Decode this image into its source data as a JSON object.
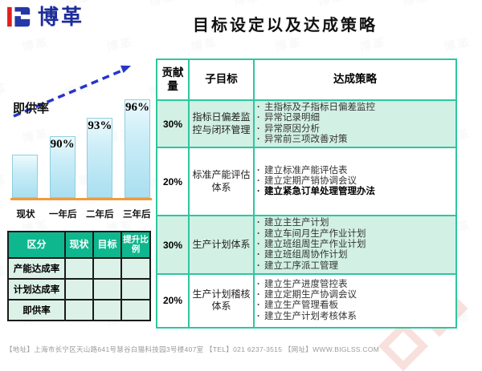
{
  "watermark": {
    "text": "博革"
  },
  "logo": {
    "company": "博革"
  },
  "header": {
    "title": "目标设定以及达成策略"
  },
  "chart_data": {
    "type": "bar",
    "title": "即供率",
    "categories": [
      "现状",
      "一年后",
      "二年后",
      "三年后"
    ],
    "values": [
      87,
      90,
      93,
      96
    ],
    "data_labels": [
      "",
      "90%",
      "93%",
      "96%"
    ],
    "ylim": [
      80,
      100
    ],
    "xlabel": "",
    "ylabel": "",
    "grid": false,
    "legend": false,
    "annotations": [
      "rising dashed blue trend arrow above bars",
      "orange baseline under bars"
    ]
  },
  "metrics_table": {
    "headers": [
      "区分",
      "现状",
      "目标",
      "提升比例"
    ],
    "rows": [
      {
        "label": "产能达成率",
        "values": [
          "",
          "",
          ""
        ]
      },
      {
        "label": "计划达成率",
        "values": [
          "",
          "",
          ""
        ]
      },
      {
        "label": "即供率",
        "values": [
          "",
          "",
          ""
        ]
      }
    ]
  },
  "strategy_table": {
    "headers": [
      "贡献量",
      "子目标",
      "达成策略"
    ],
    "rows": [
      {
        "contribution": "30%",
        "sub_goal": "指标日偏差监控与闭环管理",
        "strategies": [
          {
            "text": "主指标及子指标日偏差监控",
            "bold": false
          },
          {
            "text": "异常记录明细",
            "bold": false
          },
          {
            "text": "异常原因分析",
            "bold": false
          },
          {
            "text": "异常前三项改善对策",
            "bold": false
          }
        ]
      },
      {
        "contribution": "20%",
        "sub_goal": "标准产能评估体系",
        "strategies": [
          {
            "text": "建立标准产能评估表",
            "bold": false
          },
          {
            "text": "建立定期产销协调会议",
            "bold": false
          },
          {
            "text": "建立紧急订单处理管理办法",
            "bold": true
          }
        ]
      },
      {
        "contribution": "30%",
        "sub_goal": "生产计划体系",
        "strategies": [
          {
            "text": "建立主生产计划",
            "bold": false
          },
          {
            "text": "建立车间月生产作业计划",
            "bold": false
          },
          {
            "text": "建立班组周生产作业计划",
            "bold": false
          },
          {
            "text": "建立班组周协作计划",
            "bold": false
          },
          {
            "text": "建立工序派工管理",
            "bold": false
          }
        ]
      },
      {
        "contribution": "20%",
        "sub_goal": "生产计划稽核体系",
        "strategies": [
          {
            "text": "建立生产进度管控表",
            "bold": false
          },
          {
            "text": "建立定期生产协调会议",
            "bold": false
          },
          {
            "text": "建立生产管理看板",
            "bold": false
          },
          {
            "text": "建立生产计划考核体系",
            "bold": false
          }
        ]
      }
    ]
  },
  "footer": {
    "text": "【地址】上海市长宁区天山路641号慧谷白猫科技园3号楼407室 【TEL】021 6237-3515 【网址】WWW.BIGLSS.COM"
  },
  "colors": {
    "accent_teal": "#2EC6A0",
    "row_tint": "#D2F0E4",
    "metrics_header_green": "#0FB78E",
    "metrics_cell_tint": "#DCF1E8",
    "bar_fill": "#B9E4F2",
    "bar_border": "#8ECFE0",
    "arrow_blue": "#2736C8",
    "baseline_orange": "#F09A3E",
    "logo_blue": "#1E2D9A",
    "logo_red": "#E02020"
  }
}
